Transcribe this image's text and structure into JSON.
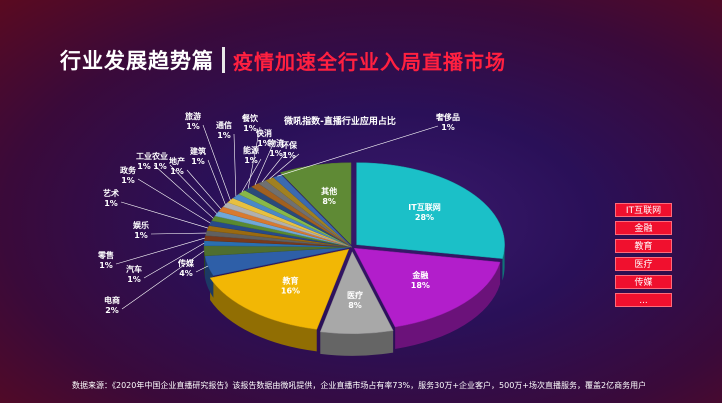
{
  "header": {
    "title": "行业发展趋势篇",
    "subtitle": "疫情加速全行业入局直播市场"
  },
  "footer": {
    "source": "数据来源：《2020年中国企业直播研究报告》该报告数据由微吼提供，企业直播市场占有率73%，服务30万+企业客户，500万+场次直播服务，覆盖2亿商务用户"
  },
  "legend": {
    "items": [
      "IT互联网",
      "金融",
      "教育",
      "医疗",
      "传媒",
      "..."
    ]
  },
  "chart_data": {
    "type": "pie",
    "title": "微吼指数-直播行业应用占比",
    "slices": [
      {
        "label": "IT互联网",
        "value": 28,
        "display": "28%",
        "color": "#1bc0c8"
      },
      {
        "label": "金融",
        "value": 18,
        "display": "18%",
        "color": "#b21ecb"
      },
      {
        "label": "医疗",
        "value": 8,
        "display": "8%",
        "color": "#a8a8a8"
      },
      {
        "label": "教育",
        "value": 16,
        "display": "16%",
        "color": "#f2b705"
      },
      {
        "label": "传媒",
        "value": 4,
        "display": "4%",
        "color": "#2e5fa8"
      },
      {
        "label": "电商",
        "value": 2,
        "display": "2%",
        "color": "#4f6e30"
      },
      {
        "label": "汽车",
        "value": 1,
        "display": "1%",
        "color": "#2a6fb0"
      },
      {
        "label": "零售",
        "value": 1,
        "display": "1%",
        "color": "#7a3a1a"
      },
      {
        "label": "娱乐",
        "value": 1,
        "display": "1%",
        "color": "#606060"
      },
      {
        "label": "艺术",
        "value": 1,
        "display": "1%",
        "color": "#9a6a10"
      },
      {
        "label": "政务",
        "value": 1,
        "display": "1%",
        "color": "#274a8a"
      },
      {
        "label": "工业",
        "value": 1,
        "display": "1%",
        "color": "#5a8a30"
      },
      {
        "label": "农业",
        "value": 1,
        "display": "1%",
        "color": "#6fa8d8"
      },
      {
        "label": "地产",
        "value": 1,
        "display": "1%",
        "color": "#d87a30"
      },
      {
        "label": "建筑",
        "value": 1,
        "display": "1%",
        "color": "#b0b0b0"
      },
      {
        "label": "旅游",
        "value": 1,
        "display": "1%",
        "color": "#e8c040"
      },
      {
        "label": "通信",
        "value": 1,
        "display": "1%",
        "color": "#4a88c8"
      },
      {
        "label": "能源",
        "value": 1,
        "display": "1%",
        "color": "#88b848"
      },
      {
        "label": "餐饮",
        "value": 1,
        "display": "1%",
        "color": "#2a4a7a"
      },
      {
        "label": "快消",
        "value": 1,
        "display": "1%",
        "color": "#a06020"
      },
      {
        "label": "物流",
        "value": 1,
        "display": "1%",
        "color": "#707070"
      },
      {
        "label": "环保",
        "value": 1,
        "display": "1%",
        "color": "#a08020"
      },
      {
        "label": "奢侈品",
        "value": 1,
        "display": "1%",
        "color": "#3a6ab0"
      },
      {
        "label": "其他",
        "value": 8,
        "display": "8%",
        "color": "#5f8a35"
      }
    ],
    "legend_placement": "right"
  }
}
